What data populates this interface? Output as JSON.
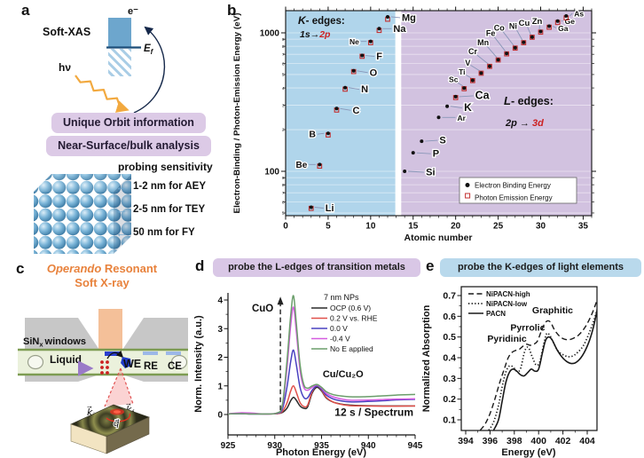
{
  "panel_a": {
    "letter": "a",
    "title": "Soft-XAS",
    "photon_label": "hν",
    "electron_label": "e⁻",
    "fermi_main": "E",
    "fermi_sub": "f",
    "boxes": [
      "Unique Orbit information",
      "Near-Surface/bulk analysis"
    ],
    "probing_title": "probing sensitivity",
    "arrow_char": "←",
    "probing_items": [
      "1-2 nm for AEY",
      "2-5 nm for TEY",
      "50 nm for FY"
    ]
  },
  "panel_b": {
    "letter": "b"
  },
  "panel_c": {
    "letter": "c",
    "title_italic": "Operando",
    "title_rest": " Resonant",
    "title_line2": "Soft X-ray",
    "window_pre": "SiN",
    "window_sub": "x",
    "window_post": "windows",
    "liquid_label": "Liquid",
    "we_label": "WE",
    "re_label": "RE",
    "ce_label": "CE",
    "ki_main": "k⃗",
    "ki_sub": "i",
    "kf_main": "k⃗",
    "kf_sub": "f",
    "q_label": "q⃗"
  },
  "panel_d": {
    "letter": "d",
    "header": "probe the L-edges of transition metals"
  },
  "panel_e": {
    "letter": "e",
    "header": "probe the K-edges of light elements"
  },
  "chart_data": [
    {
      "id": "b",
      "type": "scatter",
      "xlabel": "Atomic number",
      "ylabel": "Electron-Binding / Photon-Emission Energy (eV)",
      "xlim": [
        0,
        36
      ],
      "ylim_log": [
        47,
        1450
      ],
      "x_ticks": [
        0,
        5,
        10,
        15,
        20,
        25,
        30,
        35
      ],
      "y_major_ticks": [
        100,
        1000
      ],
      "grid": true,
      "regions": [
        {
          "name": "K-edges",
          "x0": 0,
          "x1": 12.9,
          "color": "#b0d5eb",
          "title_head": "K",
          "title_rest": "- edges:",
          "title_color": "#9c3a3a",
          "subtitle_parts": [
            "1s",
            "→",
            "2p"
          ]
        },
        {
          "name": "L-edges",
          "x0": 13.6,
          "x1": 36,
          "color": "#d2c2e0",
          "title_head": "L",
          "title_rest": "- edges:",
          "title_color": "#c92f2f",
          "subtitle_parts": [
            "2p",
            " → ",
            "3d"
          ]
        }
      ],
      "legend": [
        {
          "marker": "dot",
          "label": "Electron Binding Energy"
        },
        {
          "marker": "square",
          "label": "Photon Emission Energy"
        }
      ],
      "points": [
        {
          "el": "Li",
          "z": 3,
          "bind": 55,
          "emit": 54,
          "side": "right",
          "lo": [
            16,
            1
          ],
          "fs": 11
        },
        {
          "el": "Be",
          "z": 4,
          "bind": 112,
          "emit": 109,
          "side": "left",
          "lo": [
            -14,
            0
          ],
          "fs": 10
        },
        {
          "el": "B",
          "z": 5,
          "bind": 188,
          "emit": 183,
          "side": "left",
          "lo": [
            -14,
            1
          ],
          "fs": 10.5
        },
        {
          "el": "C",
          "z": 6,
          "bind": 284,
          "emit": 277,
          "side": "right",
          "lo": [
            18,
            2
          ],
          "fs": 11
        },
        {
          "el": "N",
          "z": 7,
          "bind": 402,
          "emit": 392,
          "side": "right",
          "lo": [
            18,
            2
          ],
          "fs": 11
        },
        {
          "el": "O",
          "z": 8,
          "bind": 532,
          "emit": 525,
          "side": "right",
          "lo": [
            18,
            2
          ],
          "fs": 11
        },
        {
          "el": "F",
          "z": 9,
          "bind": 686,
          "emit": 677,
          "side": "right",
          "lo": [
            16,
            1
          ],
          "fs": 11
        },
        {
          "el": "Ne",
          "z": 10,
          "bind": 867,
          "emit": 849,
          "side": "left",
          "lo": [
            -13,
            0
          ],
          "fs": 8.5
        },
        {
          "el": "Na",
          "z": 11,
          "bind": 1072,
          "emit": 1041,
          "side": "right",
          "lo": [
            16,
            0
          ],
          "fs": 11
        },
        {
          "el": "Mg",
          "z": 12,
          "bind": 1305,
          "emit": 1254,
          "side": "right",
          "lo": [
            16,
            1
          ],
          "fs": 11
        },
        {
          "el": "Si",
          "z": 14,
          "bind": 100,
          "side": "right",
          "lo": [
            24,
            1
          ],
          "fs": 11
        },
        {
          "el": "P",
          "z": 15,
          "bind": 136,
          "side": "right",
          "lo": [
            22,
            1
          ],
          "fs": 11
        },
        {
          "el": "S",
          "z": 16,
          "bind": 165,
          "side": "right",
          "lo": [
            20,
            -1
          ],
          "fs": 11
        },
        {
          "el": "Ar",
          "z": 18,
          "bind": 245,
          "side": "right",
          "lo": [
            21,
            0
          ],
          "fs": 8.5
        },
        {
          "el": "K",
          "z": 19,
          "bind": 295,
          "side": "right",
          "lo": [
            19,
            2
          ],
          "fs": 12
        },
        {
          "el": "Ca",
          "z": 20,
          "bind": 346,
          "emit": 341,
          "side": "right",
          "lo": [
            22,
            -1
          ],
          "fs": 12.5
        },
        {
          "el": "Sc",
          "z": 21,
          "bind": 399,
          "emit": 395,
          "side": "diag",
          "lo": [
            -12,
            -10
          ],
          "fs": 8.5
        },
        {
          "el": "Ti",
          "z": 22,
          "bind": 454,
          "emit": 452,
          "side": "diag",
          "lo": [
            -12,
            -10
          ],
          "fs": 8.5
        },
        {
          "el": "V",
          "z": 23,
          "bind": 512,
          "emit": 511,
          "side": "diag",
          "lo": [
            -15,
            -12
          ],
          "fs": 9
        },
        {
          "el": "Cr",
          "z": 24,
          "bind": 574,
          "emit": 573,
          "side": "diag",
          "lo": [
            -19,
            -17
          ],
          "fs": 9
        },
        {
          "el": "Mn",
          "z": 25,
          "bind": 639,
          "emit": 637,
          "side": "diag",
          "lo": [
            -17,
            -20
          ],
          "fs": 9
        },
        {
          "el": "Fe",
          "z": 26,
          "bind": 710,
          "emit": 705,
          "side": "diag",
          "lo": [
            -18,
            -23
          ],
          "fs": 9
        },
        {
          "el": "Co",
          "z": 27,
          "bind": 779,
          "emit": 776,
          "side": "diag",
          "lo": [
            -18,
            -23
          ],
          "fs": 9
        },
        {
          "el": "Ni",
          "z": 28,
          "bind": 853,
          "emit": 849,
          "side": "diag",
          "lo": [
            -12,
            -19
          ],
          "fs": 9
        },
        {
          "el": "Cu",
          "z": 29,
          "bind": 933,
          "emit": 930,
          "side": "diag",
          "lo": [
            -9,
            -16
          ],
          "fs": 9.5
        },
        {
          "el": "Zn",
          "z": 30,
          "bind": 1022,
          "emit": 1012,
          "side": "diag",
          "lo": [
            -4,
            -12
          ],
          "fs": 9.5
        },
        {
          "el": "Ga",
          "z": 31,
          "bind": 1117,
          "emit": 1098,
          "side": "right",
          "lo": [
            10,
            2
          ],
          "fs": 8.5
        },
        {
          "el": "Ge",
          "z": 32,
          "bind": 1217,
          "emit": 1188,
          "side": "right",
          "lo": [
            8,
            0
          ],
          "fs": 8.5
        },
        {
          "el": "As",
          "z": 33,
          "bind": 1323,
          "emit": 1282,
          "side": "right",
          "lo": [
            9,
            -3
          ],
          "fs": 8.5
        }
      ]
    },
    {
      "id": "d",
      "type": "line",
      "xlabel": "Photon Energy (eV)",
      "ylabel": "Norm. Intensity (a.u.)",
      "xlim": [
        925,
        945
      ],
      "ylim": [
        -0.7,
        4.25
      ],
      "xticks": [
        925,
        930,
        935,
        940,
        945
      ],
      "yticks": [
        0,
        1,
        2,
        3,
        4
      ],
      "legend_title": "7 nm NPs",
      "x": [
        925,
        926.3,
        927.5,
        929,
        930.2,
        930.8,
        931.3,
        931.7,
        932.0,
        932.3,
        932.7,
        933.1,
        933.5,
        934.0,
        934.5,
        935.0,
        935.5,
        936.2,
        937,
        938,
        939.5,
        941.5,
        943,
        945
      ],
      "series": [
        {
          "name": "OCP (0.6 V)",
          "color": "#2b2b2b",
          "y": [
            0.02,
            0.03,
            0.02,
            0.02,
            0.03,
            0.07,
            0.22,
            0.48,
            0.6,
            0.5,
            0.3,
            0.22,
            0.26,
            0.75,
            0.95,
            0.82,
            0.58,
            0.44,
            0.37,
            0.33,
            0.31,
            0.3,
            0.3,
            0.3
          ]
        },
        {
          "name": "0.2 V vs. RHE",
          "color": "#e0504a",
          "y": [
            0.02,
            0.04,
            0.03,
            0.02,
            0.03,
            0.1,
            0.4,
            0.82,
            1.0,
            0.78,
            0.42,
            0.28,
            0.32,
            0.8,
            1.0,
            0.85,
            0.6,
            0.44,
            0.36,
            0.31,
            0.3,
            0.29,
            0.29,
            0.3
          ]
        },
        {
          "name": "0.0 V",
          "color": "#4840c0",
          "y": [
            0.02,
            0.03,
            0.02,
            0.02,
            0.04,
            0.18,
            0.95,
            1.85,
            2.25,
            1.75,
            0.95,
            0.6,
            0.58,
            0.85,
            1.0,
            0.88,
            0.68,
            0.55,
            0.48,
            0.44,
            0.45,
            0.48,
            0.51,
            0.53
          ]
        },
        {
          "name": "-0.4 V",
          "color": "#d55ce0",
          "y": [
            0.03,
            0.06,
            0.05,
            0.02,
            0.05,
            0.28,
            1.6,
            3.1,
            3.75,
            2.9,
            1.55,
            0.95,
            0.85,
            0.95,
            1.03,
            0.92,
            0.74,
            0.62,
            0.55,
            0.5,
            0.5,
            0.52,
            0.54,
            0.55
          ]
        },
        {
          "name": "No E applied",
          "color": "#6b9e6b",
          "y": [
            0.02,
            0.03,
            0.02,
            0.02,
            0.05,
            0.32,
            1.85,
            3.45,
            4.15,
            3.2,
            1.75,
            1.05,
            0.92,
            1.0,
            1.05,
            0.95,
            0.8,
            0.7,
            0.65,
            0.62,
            0.62,
            0.65,
            0.68,
            0.7
          ]
        }
      ],
      "annotations": {
        "peak1": "CuO",
        "peak1_x": 930.6,
        "peak2": "Cu/Cu₂O",
        "peak2_x": 937.3,
        "peak2_y": 1.3,
        "time_note": "12 s / Spectrum",
        "time_color": "#2b35cc"
      }
    },
    {
      "id": "e",
      "type": "line",
      "xlabel": "Energy (eV)",
      "ylabel": "Normalized Absorption",
      "xlim": [
        393.6,
        404.9
      ],
      "ylim": [
        0.05,
        0.745
      ],
      "xticks": [
        394,
        396,
        398,
        400,
        402,
        404
      ],
      "yticks": [
        0.1,
        0.2,
        0.3,
        0.4,
        0.5,
        0.6,
        0.7
      ],
      "series": [
        {
          "name": "NiPACN-high",
          "dash": "6 3.5",
          "width": 1.4,
          "color": "#1a1a1a",
          "x": [
            395.2,
            395.6,
            396.0,
            396.4,
            396.8,
            397.2,
            397.5,
            397.8,
            398.1,
            398.4,
            398.7,
            399.0,
            399.3,
            399.6,
            399.9,
            400.2,
            400.5,
            400.75,
            401.0,
            401.3,
            401.7,
            402.1,
            402.5,
            402.9,
            403.3,
            403.8,
            404.3,
            404.7,
            404.9
          ],
          "y": [
            0.05,
            0.08,
            0.13,
            0.2,
            0.28,
            0.35,
            0.4,
            0.425,
            0.435,
            0.44,
            0.455,
            0.465,
            0.46,
            0.465,
            0.48,
            0.525,
            0.565,
            0.578,
            0.57,
            0.535,
            0.505,
            0.49,
            0.487,
            0.495,
            0.51,
            0.545,
            0.6,
            0.66,
            0.7
          ]
        },
        {
          "name": "NiPACN-low",
          "dash": "1.3 2.3",
          "width": 1.7,
          "color": "#1a1a1a",
          "x": [
            395.9,
            396.3,
            396.7,
            397.0,
            397.3,
            397.6,
            397.9,
            398.2,
            398.5,
            398.8,
            399.0,
            399.2,
            399.5,
            399.8,
            400.1,
            400.4,
            400.65,
            400.9,
            401.2,
            401.6,
            402.0,
            402.4,
            402.8,
            403.2,
            403.7,
            404.2,
            404.6,
            404.9
          ],
          "y": [
            0.05,
            0.09,
            0.17,
            0.26,
            0.33,
            0.36,
            0.355,
            0.335,
            0.345,
            0.42,
            0.448,
            0.445,
            0.4,
            0.365,
            0.38,
            0.46,
            0.515,
            0.51,
            0.475,
            0.432,
            0.415,
            0.405,
            0.408,
            0.425,
            0.46,
            0.525,
            0.59,
            0.65
          ]
        },
        {
          "name": "PACN",
          "dash": null,
          "width": 1.6,
          "color": "#1a1a1a",
          "x": [
            396.3,
            396.7,
            397.0,
            397.3,
            397.6,
            397.9,
            398.2,
            398.5,
            398.8,
            399.1,
            399.4,
            399.7,
            400.0,
            400.3,
            400.55,
            400.8,
            401.1,
            401.5,
            401.9,
            402.3,
            402.7,
            403.1,
            403.6,
            404.1,
            404.5,
            404.9
          ],
          "y": [
            0.05,
            0.1,
            0.19,
            0.28,
            0.33,
            0.345,
            0.335,
            0.318,
            0.312,
            0.328,
            0.345,
            0.335,
            0.345,
            0.42,
            0.48,
            0.5,
            0.487,
            0.44,
            0.405,
            0.382,
            0.372,
            0.378,
            0.41,
            0.47,
            0.545,
            0.655
          ]
        }
      ],
      "annotations": [
        {
          "text": "Pyridinic",
          "color": "#d03030",
          "x": 397.4,
          "y": 0.477
        },
        {
          "text": "Pyrrolic",
          "color": "#3d9a3d",
          "x": 399.1,
          "y": 0.53
        },
        {
          "text": "Graphitic",
          "color": "#3b5bb5",
          "x": 401.15,
          "y": 0.615
        }
      ]
    }
  ]
}
